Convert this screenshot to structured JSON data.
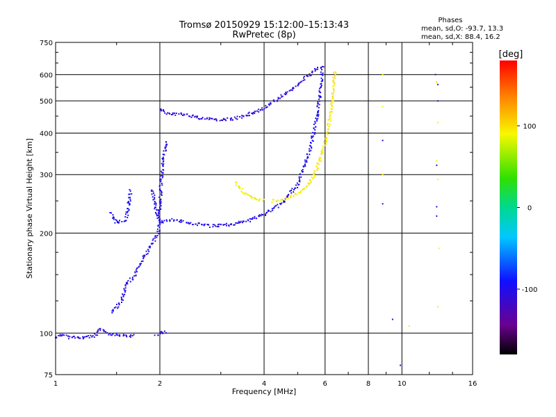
{
  "chart_data": {
    "type": "scatter",
    "title": "Tromsø 20150929 15:12:00–15:13:43",
    "subtitle": "RwPretec (8p)",
    "xlabel": "Frequency [MHz]",
    "ylabel": "Stationary phase Virtual Height [km]",
    "x_scale": "log",
    "y_scale": "log",
    "xlim": [
      1,
      16
    ],
    "ylim": [
      75,
      750
    ],
    "x_ticks": [
      "1",
      "2",
      "4",
      "6",
      "8",
      "10",
      "16"
    ],
    "y_ticks": [
      "75",
      "100",
      "200",
      "300",
      "400",
      "500",
      "600",
      "750"
    ],
    "grid": true,
    "stats": {
      "heading": "Phases",
      "line_o": "mean, sd,O: -93.7, 13.3",
      "line_x": "mean, sd,X:  88.4, 16.2"
    },
    "colorbar": {
      "label": "[deg]",
      "range": [
        -180,
        180
      ],
      "ticks": [
        "100",
        "0",
        "-100"
      ]
    },
    "traces": [
      {
        "phase": -105,
        "points": [
          [
            1.0,
            97
          ],
          [
            1.05,
            99
          ],
          [
            1.1,
            97
          ],
          [
            1.2,
            97
          ],
          [
            1.3,
            98
          ],
          [
            1.35,
            103
          ],
          [
            1.4,
            100
          ],
          [
            1.5,
            99
          ],
          [
            1.6,
            98
          ],
          [
            1.7,
            98
          ]
        ]
      },
      {
        "phase": -100,
        "points": [
          [
            1.45,
            115
          ],
          [
            1.55,
            125
          ],
          [
            1.6,
            140
          ],
          [
            1.7,
            150
          ],
          [
            1.8,
            170
          ],
          [
            1.9,
            185
          ],
          [
            1.98,
            200
          ],
          [
            2.0,
            240
          ],
          [
            2.02,
            290
          ],
          [
            2.05,
            340
          ],
          [
            2.1,
            380
          ]
        ]
      },
      {
        "phase": -110,
        "points": [
          [
            1.95,
            98
          ],
          [
            2.0,
            100
          ],
          [
            2.1,
            101
          ]
        ]
      },
      {
        "phase": -95,
        "points": [
          [
            1.45,
            230
          ],
          [
            1.5,
            215
          ],
          [
            1.6,
            220
          ],
          [
            1.65,
            270
          ]
        ]
      },
      {
        "phase": -100,
        "points": [
          [
            1.9,
            270
          ],
          [
            1.95,
            235
          ],
          [
            2.0,
            215
          ],
          [
            2.2,
            220
          ],
          [
            2.4,
            215
          ],
          [
            2.8,
            210
          ],
          [
            3.2,
            212
          ],
          [
            3.6,
            218
          ],
          [
            4.0,
            228
          ],
          [
            4.5,
            245
          ],
          [
            5.0,
            280
          ],
          [
            5.4,
            350
          ],
          [
            5.7,
            450
          ],
          [
            5.85,
            560
          ],
          [
            5.9,
            620
          ]
        ]
      },
      {
        "phase": -105,
        "points": [
          [
            2.0,
            470
          ],
          [
            2.1,
            460
          ],
          [
            2.3,
            455
          ],
          [
            2.6,
            445
          ],
          [
            2.9,
            440
          ],
          [
            3.2,
            440
          ],
          [
            3.5,
            450
          ],
          [
            3.9,
            470
          ],
          [
            4.3,
            500
          ],
          [
            4.8,
            540
          ],
          [
            5.3,
            590
          ],
          [
            5.6,
            620
          ],
          [
            6.0,
            640
          ]
        ]
      },
      {
        "phase": 95,
        "points": [
          [
            4.2,
            250
          ],
          [
            4.5,
            252
          ],
          [
            4.9,
            260
          ],
          [
            5.3,
            275
          ],
          [
            5.6,
            300
          ],
          [
            5.9,
            350
          ],
          [
            6.1,
            400
          ],
          [
            6.25,
            470
          ],
          [
            6.35,
            540
          ],
          [
            6.4,
            620
          ]
        ]
      },
      {
        "phase": 90,
        "points": [
          [
            3.3,
            285
          ],
          [
            3.5,
            265
          ],
          [
            3.7,
            255
          ],
          [
            4.0,
            250
          ]
        ]
      },
      {
        "phase": 90,
        "points": [
          [
            8.8,
            600
          ],
          [
            8.8,
            480
          ],
          [
            8.8,
            300
          ],
          [
            10.5,
            105
          ],
          [
            12.5,
            600
          ],
          [
            12.6,
            570
          ],
          [
            12.7,
            430
          ],
          [
            12.6,
            330
          ],
          [
            12.7,
            290
          ],
          [
            12.8,
            180
          ],
          [
            12.7,
            120
          ]
        ]
      },
      {
        "phase": -105,
        "points": [
          [
            8.8,
            380
          ],
          [
            8.8,
            245
          ],
          [
            9.4,
            110
          ],
          [
            9.9,
            80
          ],
          [
            12.5,
            600
          ],
          [
            12.7,
            560
          ],
          [
            12.7,
            500
          ],
          [
            12.6,
            320
          ],
          [
            12.6,
            240
          ],
          [
            12.6,
            225
          ]
        ]
      }
    ]
  }
}
